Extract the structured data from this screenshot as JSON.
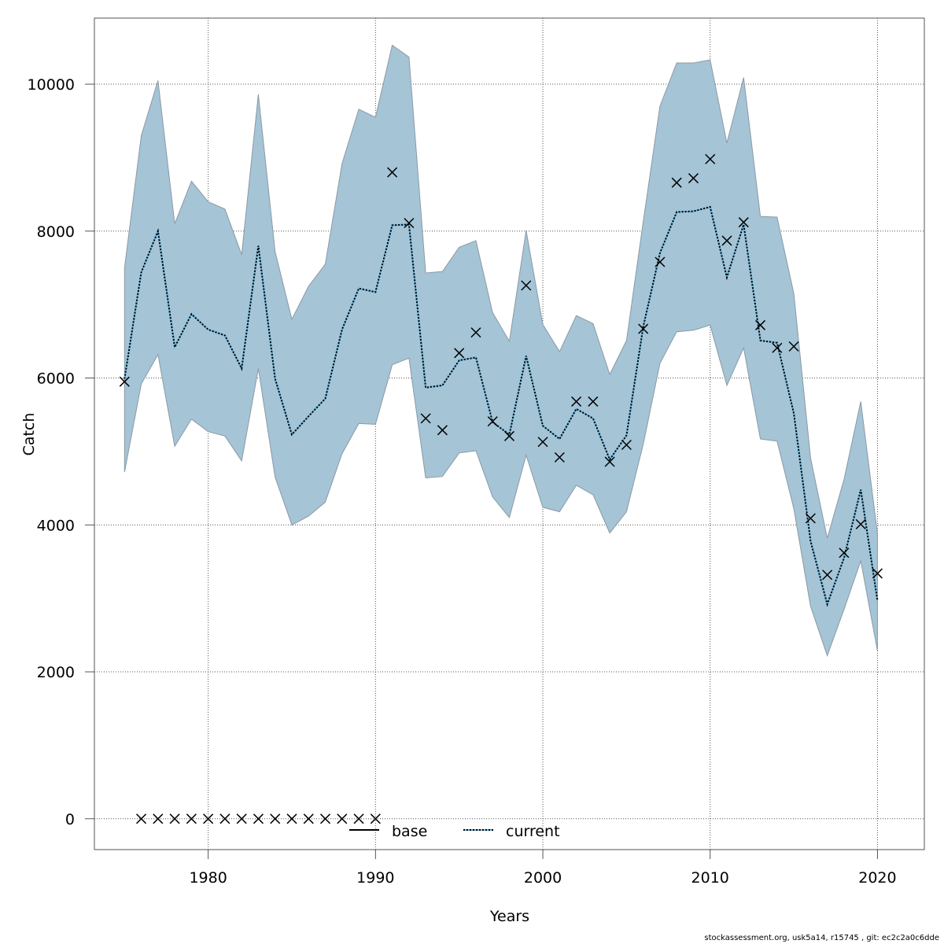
{
  "chart_data": {
    "type": "line",
    "title": "",
    "xlabel": "Years",
    "ylabel": "Catch",
    "xlim": [
      1973.2,
      2022.8
    ],
    "ylim": [
      -420,
      10900
    ],
    "grid": true,
    "x_ticks": [
      1980,
      1990,
      2000,
      2010,
      2020
    ],
    "y_ticks": [
      0,
      2000,
      4000,
      6000,
      8000,
      10000
    ],
    "legend": {
      "position": "bottom-center",
      "entries": [
        {
          "name": "base",
          "style": "solid",
          "color": "#000000"
        },
        {
          "name": "current",
          "style": "dotted",
          "color": "#000000",
          "underlay": "#5fb4e0"
        }
      ]
    },
    "colors": {
      "band_fill": "#a5c4d6",
      "band_stroke": "#8a9aa5",
      "grid": "#555555",
      "observed": "#000000"
    },
    "x": [
      1975,
      1976,
      1977,
      1978,
      1979,
      1980,
      1981,
      1982,
      1983,
      1984,
      1985,
      1986,
      1987,
      1988,
      1989,
      1990,
      1991,
      1992,
      1993,
      1994,
      1995,
      1996,
      1997,
      1998,
      1999,
      2000,
      2001,
      2002,
      2003,
      2004,
      2005,
      2006,
      2007,
      2008,
      2009,
      2010,
      2011,
      2012,
      2013,
      2014,
      2015,
      2016,
      2017,
      2018,
      2019,
      2020
    ],
    "series": [
      {
        "name": "current",
        "values": [
          5990,
          7440,
          8000,
          6420,
          6870,
          6660,
          6580,
          6130,
          7800,
          5990,
          5230,
          5480,
          5720,
          6660,
          7220,
          7170,
          8080,
          8090,
          5870,
          5900,
          6240,
          6280,
          5400,
          5230,
          6300,
          5350,
          5170,
          5580,
          5450,
          4890,
          5220,
          6700,
          7700,
          8260,
          8270,
          8330,
          7370,
          8090,
          6510,
          6480,
          5520,
          3780,
          2920,
          3550,
          4480,
          2970
        ]
      },
      {
        "name": "upper",
        "values": [
          7500,
          9300,
          10050,
          8100,
          8680,
          8400,
          8300,
          7680,
          9860,
          7720,
          6800,
          7250,
          7550,
          8920,
          9660,
          9550,
          10530,
          10370,
          7430,
          7450,
          7780,
          7870,
          6890,
          6500,
          8010,
          6730,
          6360,
          6850,
          6740,
          6050,
          6510,
          8130,
          9700,
          10290,
          10290,
          10330,
          9200,
          10090,
          8200,
          8190,
          7150,
          4910,
          3820,
          4620,
          5680,
          3880
        ]
      },
      {
        "name": "lower",
        "values": [
          4720,
          5920,
          6320,
          5070,
          5440,
          5270,
          5210,
          4870,
          6130,
          4650,
          4000,
          4120,
          4310,
          4970,
          5380,
          5370,
          6180,
          6270,
          4640,
          4660,
          4980,
          5010,
          4380,
          4100,
          4950,
          4240,
          4180,
          4540,
          4410,
          3890,
          4180,
          5100,
          6200,
          6630,
          6650,
          6720,
          5900,
          6410,
          5170,
          5140,
          4220,
          2890,
          2220,
          2850,
          3510,
          2290
        ]
      },
      {
        "name": "observed",
        "values": [
          5950,
          0,
          0,
          0,
          0,
          0,
          0,
          0,
          0,
          0,
          0,
          0,
          0,
          0,
          0,
          0,
          8800,
          8110,
          5450,
          5290,
          6340,
          6620,
          5410,
          5210,
          7260,
          5130,
          4920,
          5680,
          5680,
          4860,
          5090,
          6670,
          7580,
          8660,
          8720,
          8980,
          7870,
          8120,
          6720,
          6410,
          6430,
          4090,
          3320,
          3620,
          4010,
          3340
        ]
      }
    ]
  },
  "footer": {
    "text": "stockassessment.org, usk5a14, r15745 , git: ec2c2a0c6dde"
  }
}
